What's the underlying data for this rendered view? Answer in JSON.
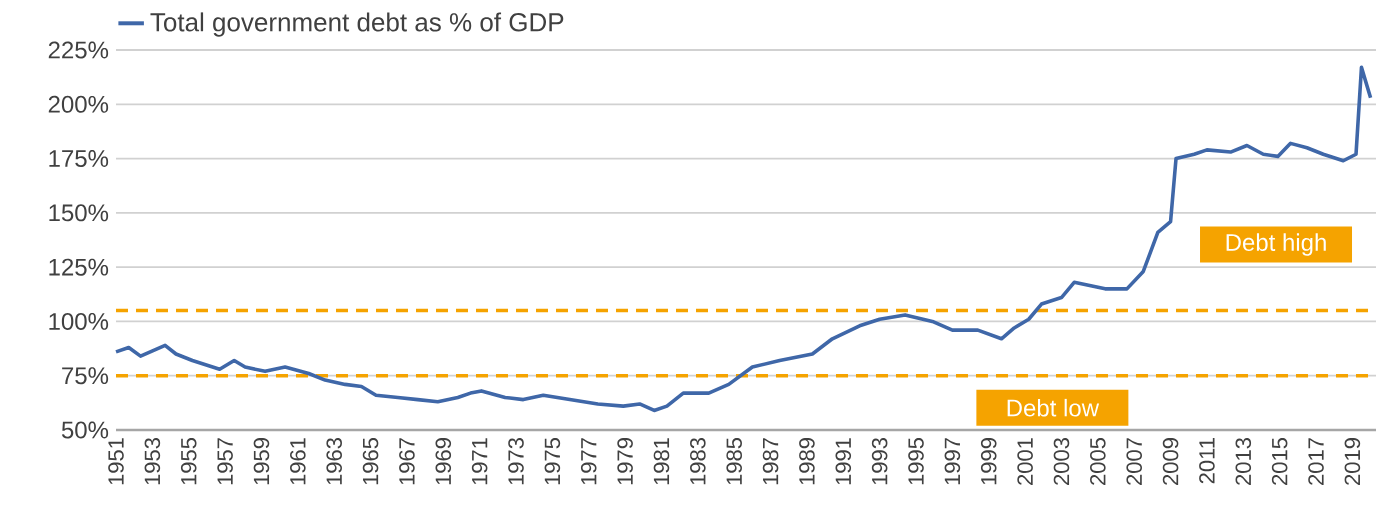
{
  "chart_data": {
    "type": "line",
    "series": [
      {
        "name": "Total government debt as % of GDP",
        "color": "#3f67a8",
        "x": [
          1951.0,
          1951.7,
          1952.35,
          1953.7,
          1954.3,
          1955.2,
          1956.7,
          1957.5,
          1958.1,
          1959.2,
          1960.3,
          1961.6,
          1962.5,
          1963.6,
          1964.5,
          1965.3,
          1966.5,
          1967.6,
          1968.7,
          1969.8,
          1970.5,
          1971.1,
          1972.4,
          1973.4,
          1974.5,
          1976.0,
          1977.5,
          1978.9,
          1979.8,
          1980.6,
          1981.3,
          1982.2,
          1983.6,
          1984.7,
          1986.0,
          1987.5,
          1989.3,
          1990.4,
          1991.9,
          1993.0,
          1994.4,
          1995.9,
          1997.0,
          1998.4,
          1999.7,
          2000.4,
          2001.2,
          2001.9,
          2003.0,
          2003.7,
          2005.4,
          2006.6,
          2007.5,
          2008.3,
          2009.0,
          2009.3,
          2010.3,
          2011.0,
          2012.3,
          2013.2,
          2014.1,
          2014.9,
          2015.6,
          2016.5,
          2017.4,
          2018.5,
          2019.2,
          2019.5,
          2020.0
        ],
        "values": [
          86,
          88,
          84,
          89,
          85,
          82,
          78,
          82,
          79,
          77,
          79,
          76,
          73,
          71,
          70,
          66,
          65,
          64,
          63,
          65,
          67,
          68,
          65,
          64,
          66,
          64,
          62,
          61,
          62,
          59,
          61,
          67,
          67,
          71,
          79,
          82,
          85,
          92,
          98,
          101,
          103,
          100,
          96,
          96,
          92,
          97,
          101,
          108,
          111,
          118,
          115,
          115,
          123,
          141,
          146,
          175,
          177,
          179,
          178,
          181,
          177,
          176,
          182,
          180,
          177,
          174,
          177,
          217,
          203
        ]
      }
    ],
    "xlim": [
      1951,
      2020.3
    ],
    "xticks": [
      1951,
      1953,
      1955,
      1957,
      1959,
      1961,
      1963,
      1965,
      1967,
      1969,
      1971,
      1973,
      1975,
      1977,
      1979,
      1981,
      1983,
      1985,
      1987,
      1989,
      1991,
      1993,
      1995,
      1997,
      1999,
      2001,
      2003,
      2005,
      2007,
      2009,
      2011,
      2013,
      2015,
      2017,
      2019
    ],
    "ylim": [
      50,
      225
    ],
    "yticks": [
      {
        "value": 50,
        "label": "50%"
      },
      {
        "value": 75,
        "label": "75%"
      },
      {
        "value": 100,
        "label": "100%"
      },
      {
        "value": 125,
        "label": "125%"
      },
      {
        "value": 150,
        "label": "150%"
      },
      {
        "value": 175,
        "label": "175%"
      },
      {
        "value": 200,
        "label": "200%"
      },
      {
        "value": 225,
        "label": "225%"
      }
    ],
    "grid": "y",
    "legend": "top left",
    "ref_lines": [
      {
        "axis": "y",
        "value": 75,
        "label": "Debt low",
        "color": "#f5a300",
        "line_style": "dashed"
      },
      {
        "axis": "y",
        "value": 105,
        "label": "Debt high",
        "color": "#f5a300",
        "line_style": "dashed"
      }
    ]
  }
}
